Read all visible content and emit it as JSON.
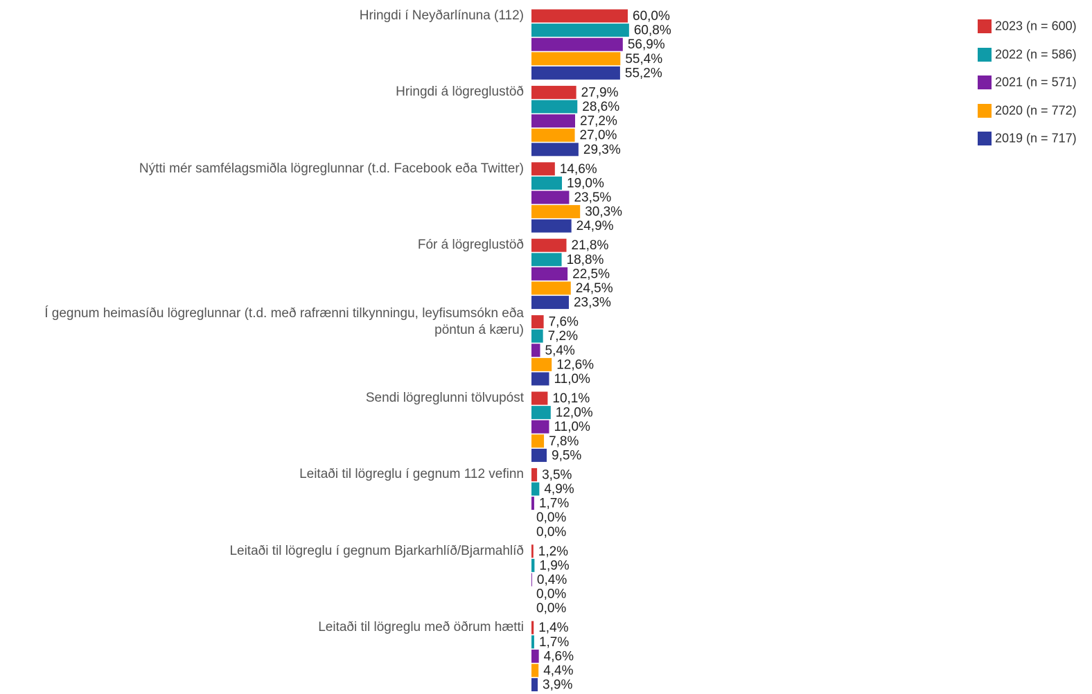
{
  "chart_data": {
    "type": "bar",
    "categories": [
      "Hringdi í Neyðarlínuna (112)",
      "Hringdi á lögreglustöð",
      "Nýtti mér samfélagsmiðla lögreglunnar (t.d. Facebook eða Twitter)",
      "Fór á lögreglustöð",
      "Í gegnum heimasíðu lögreglunnar (t.d. með rafrænni tilkynningu, leyfisumsókn eða pöntun á kæru)",
      "Sendi lögreglunni tölvupóst",
      "Leitaði til lögreglu í gegnum 112 vefinn",
      "Leitaði til lögreglu í gegnum Bjarkarhlíð/Bjarmahlíð",
      "Leitaði til lögreglu með öðrum hætti"
    ],
    "series": [
      {
        "name": "2023 (n = 600)",
        "color": "#d63333",
        "values": [
          60.0,
          27.9,
          14.6,
          21.8,
          7.6,
          10.1,
          3.5,
          1.2,
          1.4
        ],
        "value_labels": [
          "60,0%",
          "27,9%",
          "14,6%",
          "21,8%",
          "7,6%",
          "10,1%",
          "3,5%",
          "1,2%",
          "1,4%"
        ]
      },
      {
        "name": "2022 (n = 586)",
        "color": "#0f9ba8",
        "values": [
          60.8,
          28.6,
          19.0,
          18.8,
          7.2,
          12.0,
          4.9,
          1.9,
          1.7
        ],
        "value_labels": [
          "60,8%",
          "28,6%",
          "19,0%",
          "18,8%",
          "7,2%",
          "12,0%",
          "4,9%",
          "1,9%",
          "1,7%"
        ]
      },
      {
        "name": "2021 (n = 571)",
        "color": "#7b1fa2",
        "values": [
          56.9,
          27.2,
          23.5,
          22.5,
          5.4,
          11.0,
          1.7,
          0.4,
          4.6
        ],
        "value_labels": [
          "56,9%",
          "27,2%",
          "23,5%",
          "22,5%",
          "5,4%",
          "11,0%",
          "1,7%",
          "0,4%",
          "4,6%"
        ]
      },
      {
        "name": "2020 (n = 772)",
        "color": "#ffa000",
        "values": [
          55.4,
          27.0,
          30.3,
          24.5,
          12.6,
          7.8,
          0.0,
          0.0,
          4.4
        ],
        "value_labels": [
          "55,4%",
          "27,0%",
          "30,3%",
          "24,5%",
          "12,6%",
          "7,8%",
          "0,0%",
          "0,0%",
          "4,4%"
        ]
      },
      {
        "name": "2019 (n = 717)",
        "color": "#2e3b9e",
        "values": [
          55.2,
          29.3,
          24.9,
          23.3,
          11.0,
          9.5,
          0.0,
          0.0,
          3.9
        ],
        "value_labels": [
          "55,2%",
          "29,3%",
          "24,9%",
          "23,3%",
          "11,0%",
          "9,5%",
          "0,0%",
          "0,0%",
          "3,9%"
        ]
      }
    ]
  }
}
